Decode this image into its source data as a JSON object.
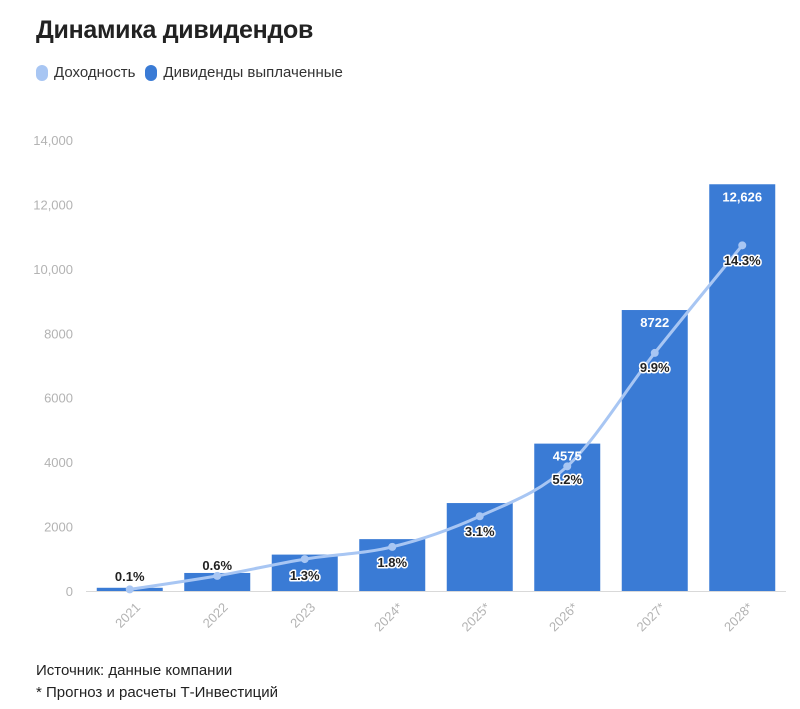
{
  "chart_data": {
    "type": "bar",
    "title": "Динамика дивидендов",
    "categories": [
      "2021",
      "2022",
      "2023",
      "2024*",
      "2025*",
      "2026*",
      "2027*",
      "2028*"
    ],
    "series": [
      {
        "name": "Дивиденды выплаченные",
        "chart_type": "bar",
        "values": [
          100,
          560,
          1130,
          1610,
          2730,
          4575,
          8722,
          12626
        ],
        "data_labels": [
          "",
          "",
          "",
          "",
          "",
          "4575",
          "8722",
          "12,626"
        ],
        "color": "#3a7bd5"
      },
      {
        "name": "Доходность",
        "chart_type": "line",
        "values_percent": [
          0.1,
          0.6,
          1.3,
          1.8,
          3.1,
          5.2,
          9.9,
          14.3
        ],
        "data_labels": [
          "0.1%",
          "0.6%",
          "1.3%",
          "1.8%",
          "3.1%",
          "5.2%",
          "9.9%",
          "14.3%"
        ],
        "color": "#a8c6f3"
      }
    ],
    "y_axis": {
      "min": 0,
      "max": 14000,
      "ticks": [
        0,
        2000,
        4000,
        6000,
        8000,
        10000,
        12000,
        14000
      ],
      "tick_labels": [
        "0",
        "2000",
        "4000",
        "6000",
        "8000",
        "10,000",
        "12,000",
        "14,000"
      ]
    },
    "line_point_values": [
      50,
      470,
      990,
      1370,
      2320,
      3870,
      7390,
      10730
    ],
    "grid": false,
    "legend_position": "top-left"
  },
  "footer": {
    "source": "Источник: данные компании",
    "note": "* Прогноз и расчеты Т-Инвестиций"
  }
}
